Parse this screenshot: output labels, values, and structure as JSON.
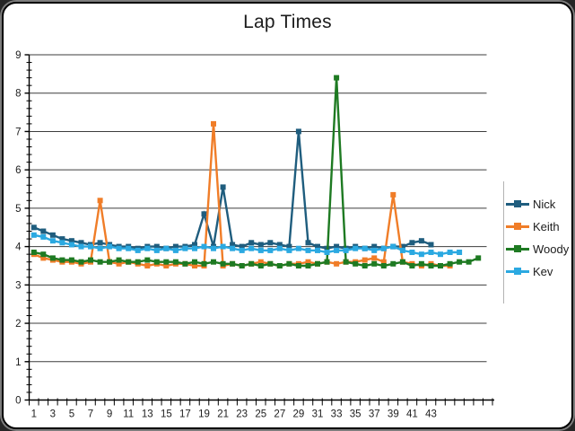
{
  "chart_data": {
    "type": "line",
    "title": "Lap Times",
    "xlabel": "",
    "ylabel": "",
    "ylim": [
      0,
      9
    ],
    "y_major_step": 1,
    "y_minor_step": 0.2,
    "n_categories": 49,
    "x_tick_labels": [
      "1",
      "3",
      "5",
      "7",
      "9",
      "11",
      "13",
      "15",
      "17",
      "19",
      "21",
      "23",
      "25",
      "27",
      "29",
      "31",
      "33",
      "35",
      "37",
      "39",
      "41",
      "43"
    ],
    "grid": "horizontal-major",
    "legend_position": "right",
    "series": [
      {
        "name": "Nick",
        "color": "#1F5D7E",
        "values": [
          4.5,
          4.4,
          4.3,
          4.2,
          4.15,
          4.1,
          4.05,
          4.1,
          4.05,
          4.0,
          4.0,
          3.95,
          4.0,
          4.0,
          3.95,
          4.0,
          4.0,
          4.05,
          4.85,
          4.0,
          5.55,
          4.05,
          4.0,
          4.1,
          4.05,
          4.1,
          4.05,
          4.0,
          7.0,
          4.1,
          4.0,
          3.95,
          4.0,
          3.95,
          4.0,
          3.95,
          4.0,
          3.95,
          4.0,
          4.0,
          4.1,
          4.15,
          4.05
        ]
      },
      {
        "name": "Keith",
        "color": "#F07D28",
        "values": [
          3.8,
          3.7,
          3.65,
          3.6,
          3.6,
          3.55,
          3.6,
          5.2,
          3.6,
          3.55,
          3.6,
          3.55,
          3.5,
          3.55,
          3.5,
          3.55,
          3.55,
          3.5,
          3.5,
          7.2,
          3.5,
          3.55,
          3.5,
          3.55,
          3.6,
          3.55,
          3.5,
          3.55,
          3.55,
          3.6,
          3.55,
          3.6,
          3.55,
          3.6,
          3.6,
          3.65,
          3.7,
          3.6,
          5.35,
          3.6,
          3.55,
          3.5,
          3.55,
          3.5,
          3.5
        ]
      },
      {
        "name": "Woody",
        "color": "#1E7A22",
        "values": [
          3.85,
          3.8,
          3.7,
          3.65,
          3.65,
          3.6,
          3.65,
          3.6,
          3.6,
          3.65,
          3.6,
          3.6,
          3.65,
          3.6,
          3.6,
          3.6,
          3.55,
          3.6,
          3.55,
          3.6,
          3.55,
          3.55,
          3.5,
          3.55,
          3.5,
          3.55,
          3.5,
          3.55,
          3.5,
          3.5,
          3.55,
          3.6,
          8.4,
          3.6,
          3.55,
          3.5,
          3.55,
          3.5,
          3.55,
          3.6,
          3.5,
          3.55,
          3.5,
          3.5,
          3.55,
          3.6,
          3.6,
          3.7
        ]
      },
      {
        "name": "Kev",
        "color": "#2BA9E1",
        "values": [
          4.3,
          4.25,
          4.15,
          4.1,
          4.05,
          4.0,
          4.0,
          3.95,
          4.0,
          3.95,
          3.95,
          3.9,
          3.95,
          3.9,
          3.95,
          3.9,
          3.95,
          3.95,
          4.0,
          3.95,
          4.0,
          3.95,
          3.9,
          3.95,
          3.9,
          3.9,
          3.95,
          3.9,
          3.95,
          3.9,
          3.9,
          3.85,
          3.9,
          3.9,
          3.95,
          3.95,
          3.9,
          3.95,
          4.0,
          3.9,
          3.85,
          3.8,
          3.85,
          3.8,
          3.85,
          3.85
        ]
      }
    ]
  }
}
